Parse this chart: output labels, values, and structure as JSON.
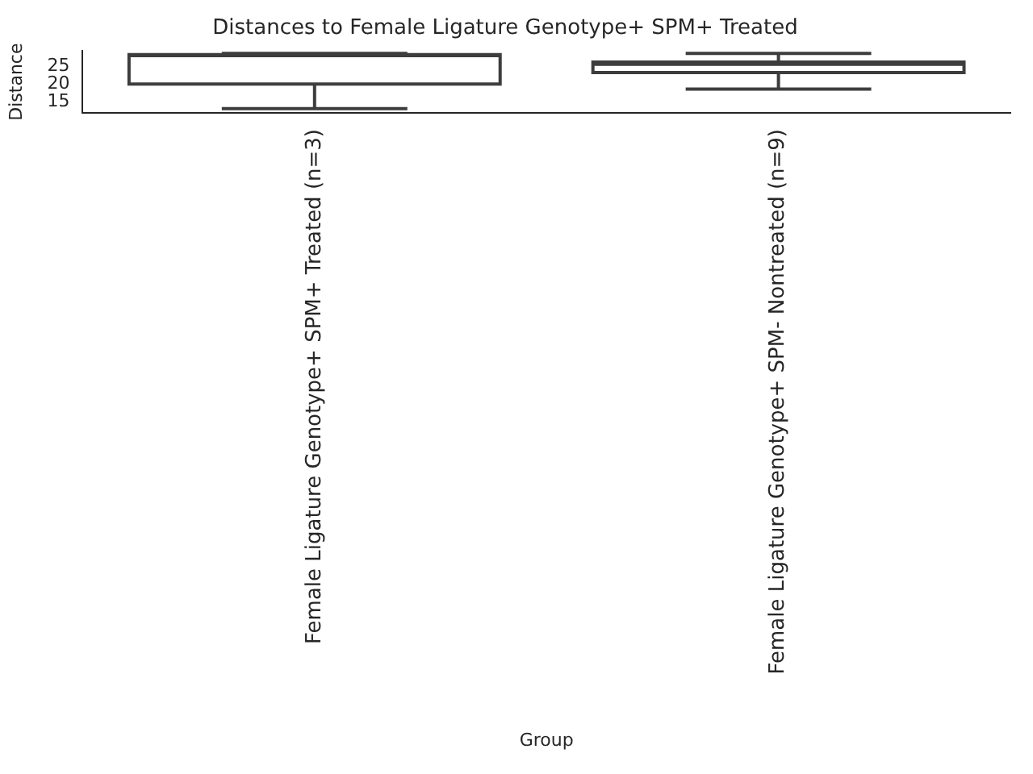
{
  "chart_data": {
    "type": "box",
    "title": "Distances to Female Ligature Genotype+ SPM+ Treated",
    "xlabel": "Group",
    "ylabel": "Distance",
    "categories": [
      "Female Ligature Genotype+ SPM+ Treated (n=3)",
      "Female Ligature Genotype+ SPM- Nontreated (n=9)"
    ],
    "boxes": [
      {
        "low": 13.2,
        "q1": 20,
        "median": 27.9,
        "q3": 28.2,
        "high": 28.5
      },
      {
        "low": 18.6,
        "q1": 23.2,
        "median": 25.5,
        "q3": 26.1,
        "high": 28.5
      }
    ],
    "color": "#3d3d3d",
    "ylim": [
      12,
      29.2
    ],
    "yticks": [
      15,
      20,
      25
    ],
    "grid": false,
    "legend": false
  }
}
